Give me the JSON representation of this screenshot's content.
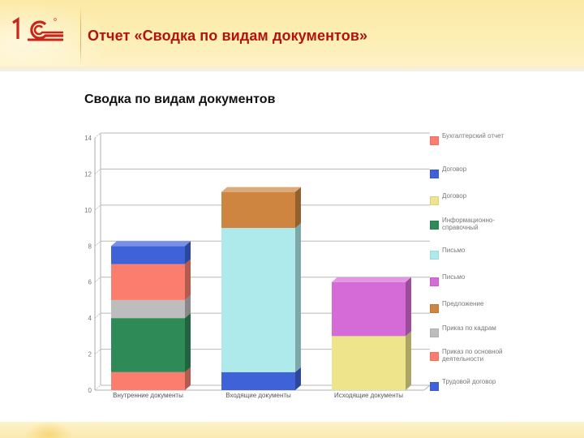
{
  "header": {
    "logo": "1C",
    "title": "Отчет «Сводка по видам документов»"
  },
  "chart_title": "Сводка по видам документов",
  "legend": [
    {
      "label": "Бухгалтерский отчет",
      "color": "#fa7d6d"
    },
    {
      "label": "Договор",
      "color": "#3f62d8"
    },
    {
      "label": "Договор",
      "color": "#ede48c"
    },
    {
      "label": "Информационно-справочный",
      "color": "#2e8b57"
    },
    {
      "label": "Письмо",
      "color": "#aeeaec"
    },
    {
      "label": "Письмо",
      "color": "#d46bd6"
    },
    {
      "label": "Предложение",
      "color": "#cd853f"
    },
    {
      "label": "Приказ по кадрам",
      "color": "#bdbdbd"
    },
    {
      "label": "Приказ по основной деятельности",
      "color": "#fa7d6d"
    },
    {
      "label": "Трудовой договор",
      "color": "#3f62d8"
    }
  ],
  "chart_data": {
    "type": "bar",
    "stacked": true,
    "style": "3d",
    "title": "Сводка по видам документов",
    "xlabel": "",
    "ylabel": "",
    "ylim": [
      0,
      14
    ],
    "yticks": [
      0,
      2,
      4,
      6,
      8,
      10,
      12,
      14
    ],
    "grid": true,
    "legend_position": "right",
    "categories": [
      "Внутренние документы",
      "Входящие документы",
      "Исходящие документы"
    ],
    "series": [
      {
        "name": "Бухгалтерский отчет",
        "color": "#fa7d6d",
        "values": [
          2,
          0,
          0
        ]
      },
      {
        "name": "Договор",
        "color": "#3f62d8",
        "values": [
          1,
          0,
          0
        ]
      },
      {
        "name": "Договор",
        "color": "#ede48c",
        "values": [
          0,
          0,
          3
        ]
      },
      {
        "name": "Информационно-справочный",
        "color": "#2e8b57",
        "values": [
          3,
          0,
          0
        ]
      },
      {
        "name": "Письмо",
        "color": "#aeeaec",
        "values": [
          0,
          8,
          0
        ]
      },
      {
        "name": "Письмо",
        "color": "#d46bd6",
        "values": [
          0,
          0,
          3
        ]
      },
      {
        "name": "Предложение",
        "color": "#cd853f",
        "values": [
          0,
          2,
          0
        ]
      },
      {
        "name": "Приказ по кадрам",
        "color": "#bdbdbd",
        "values": [
          1,
          0,
          0
        ]
      },
      {
        "name": "Приказ по основной деятельности",
        "color": "#fa7d6d",
        "values": [
          1,
          0,
          0
        ]
      },
      {
        "name": "Трудовой договор",
        "color": "#3f62d8",
        "values": [
          0,
          1,
          0
        ]
      }
    ],
    "stack_order": [
      [
        8,
        3,
        7,
        0,
        1
      ],
      [
        9,
        4,
        6
      ],
      [
        2,
        5
      ]
    ],
    "totals": [
      8,
      11,
      6
    ]
  }
}
